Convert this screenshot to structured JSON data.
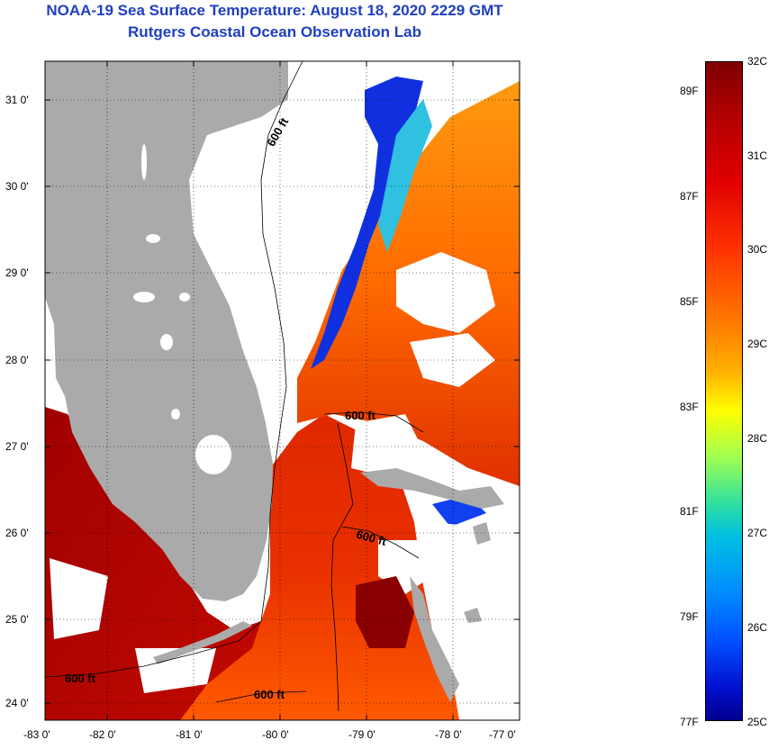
{
  "header": {
    "title": "NOAA-19 Sea Surface Temperature:  August 18, 2020 2229 GMT",
    "subtitle": "Rutgers Coastal Ocean Observation Lab"
  },
  "map": {
    "lon_labels": [
      "-83 0'",
      "-82 0'",
      "-81 0'",
      "-80 0'",
      "-79 0'",
      "-78 0'",
      "-77 0'"
    ],
    "lat_labels": [
      "31 0'",
      "30 0'",
      "29 0'",
      "28 0'",
      "27 0'",
      "26 0'",
      "25 0'",
      "24 0'"
    ],
    "contour_labels": [
      "600 ft",
      "600 ft",
      "600 ft",
      "600 ft",
      "600 ft"
    ],
    "colors": {
      "land": "#aaaaaa",
      "cloud": "#ffffff"
    }
  },
  "colorbar": {
    "celsius_labels": [
      "32C",
      "31C",
      "30C",
      "29C",
      "28C",
      "27C",
      "26C",
      "25C"
    ],
    "fahrenheit_labels": [
      "89F",
      "87F",
      "85F",
      "83F",
      "81F",
      "79F",
      "77F"
    ],
    "range_c": [
      25,
      32
    ]
  }
}
